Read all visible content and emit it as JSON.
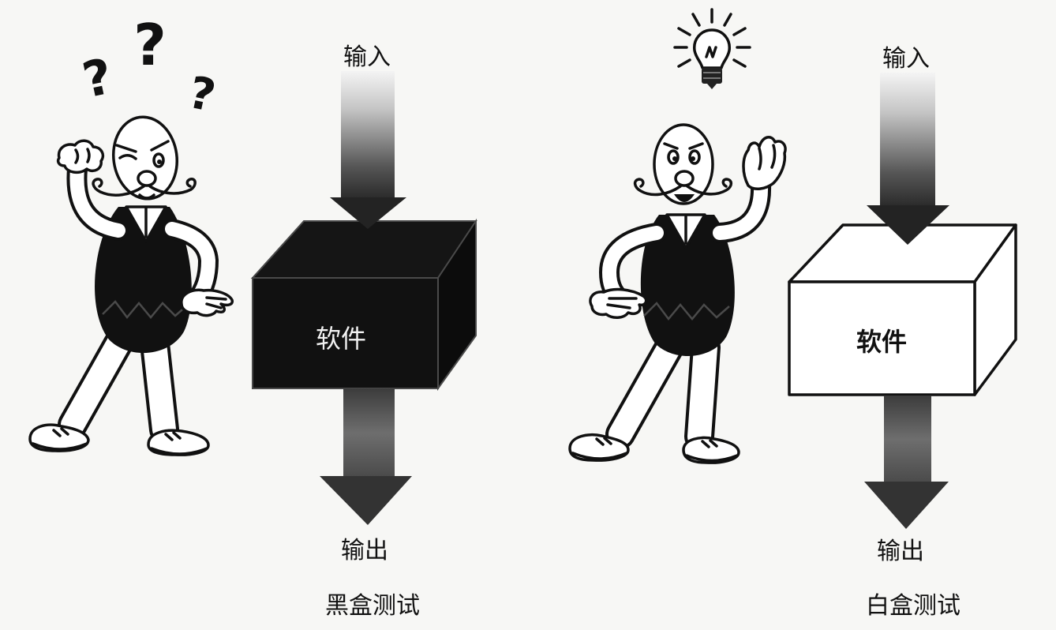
{
  "black_box_test": {
    "input_label": "输入",
    "software_label": "软件",
    "output_label": "输出",
    "caption": "黑盒测试",
    "question_marks": [
      "?",
      "?",
      "?"
    ]
  },
  "white_box_test": {
    "input_label": "输入",
    "software_label": "软件",
    "output_label": "输出",
    "caption": "白盒测试"
  },
  "icons": {
    "left_figure": "confused-man-icon",
    "right_figure": "idea-man-icon",
    "idea": "light-bulb-icon",
    "arrows": "down-arrow-icon"
  },
  "colors": {
    "ink": "#111111",
    "paper": "#f7f7f5",
    "black_box": "#111111",
    "white_box": "#ffffff"
  }
}
